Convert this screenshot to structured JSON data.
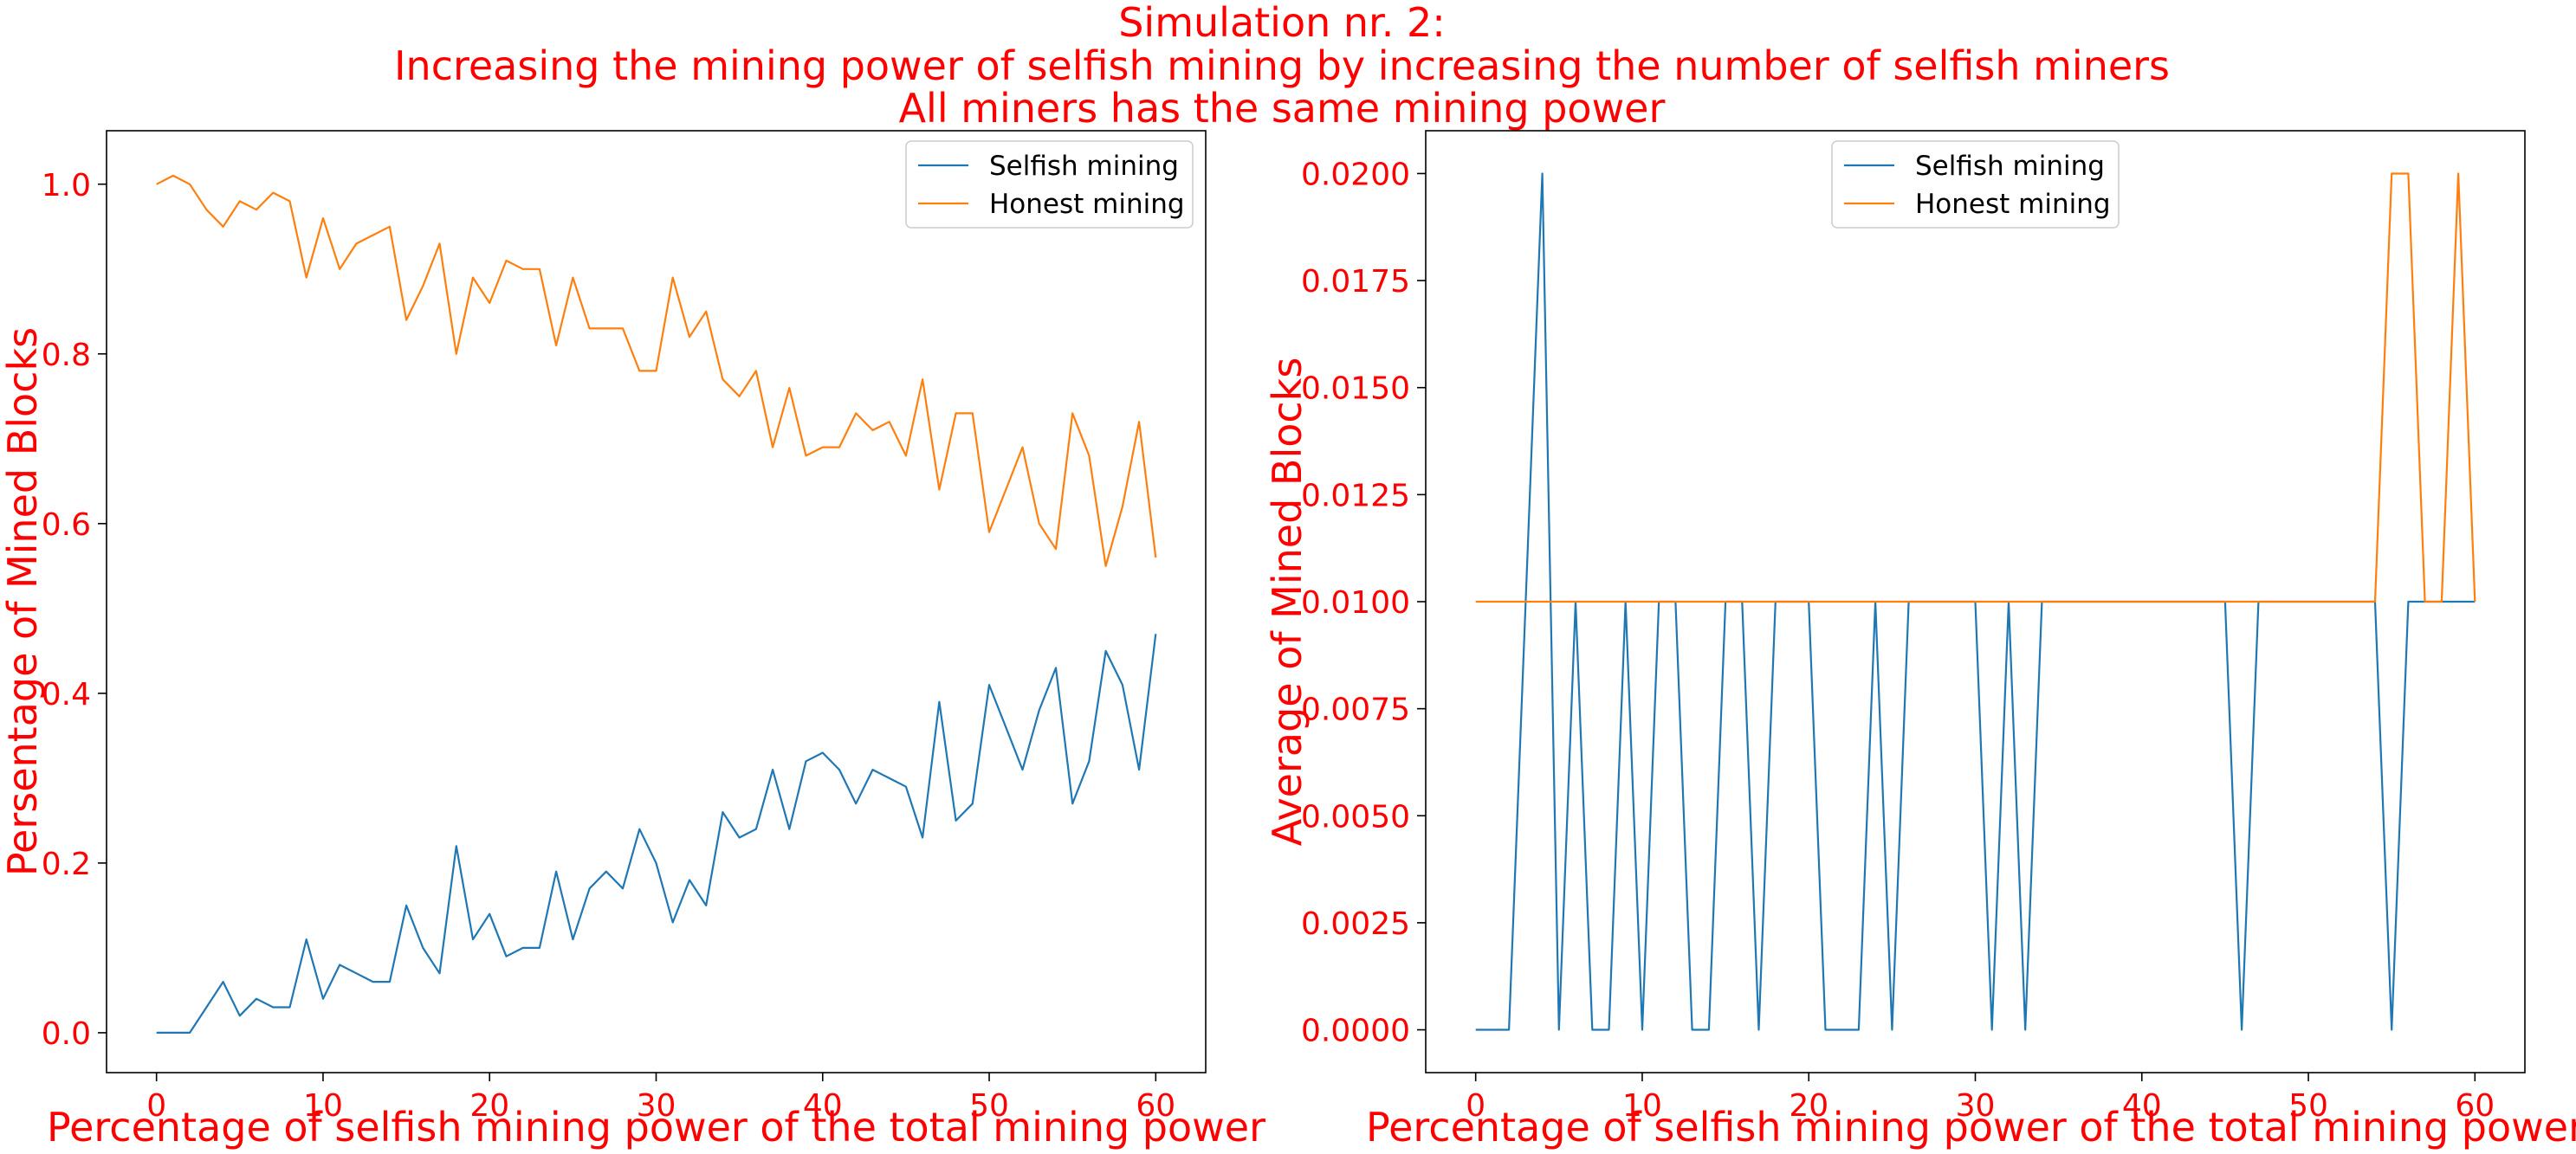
{
  "figure": {
    "title_lines": [
      "Simulation nr. 2:",
      "Increasing the mining power of selfish mining by increasing the number of selfish miners",
      "All miners has the same mining power"
    ]
  },
  "colors": {
    "selfish": "#1f77b4",
    "honest": "#ff7f0e",
    "text": "#ff0000"
  },
  "chart_data": [
    {
      "type": "line",
      "title": "",
      "xlabel": "Percentage of selfish mining power of the total mining power",
      "ylabel": "Persentage of Mined Blocks",
      "xlim": [
        -3,
        63
      ],
      "ylim": [
        -0.047,
        1.063
      ],
      "xticks": [
        0,
        10,
        20,
        30,
        40,
        50,
        60
      ],
      "xtick_labels": [
        "0",
        "10",
        "20",
        "30",
        "40",
        "50",
        "60"
      ],
      "yticks": [
        0.0,
        0.2,
        0.4,
        0.6,
        0.8,
        1.0
      ],
      "ytick_labels": [
        "0.0",
        "0.2",
        "0.4",
        "0.6",
        "0.8",
        "1.0"
      ],
      "grid": false,
      "legend": "upper right",
      "x": [
        0,
        1,
        2,
        3,
        4,
        5,
        6,
        7,
        8,
        9,
        10,
        11,
        12,
        13,
        14,
        15,
        16,
        17,
        18,
        19,
        20,
        21,
        22,
        23,
        24,
        25,
        26,
        27,
        28,
        29,
        30,
        31,
        32,
        33,
        34,
        35,
        36,
        37,
        38,
        39,
        40,
        41,
        42,
        43,
        44,
        45,
        46,
        47,
        48,
        49,
        50,
        51,
        52,
        53,
        54,
        55,
        56,
        57,
        58,
        59,
        60
      ],
      "series": [
        {
          "name": "Selfish mining",
          "color": "#1f77b4",
          "values": [
            0.0,
            0.0,
            0.0,
            0.03,
            0.06,
            0.02,
            0.04,
            0.03,
            0.03,
            0.11,
            0.04,
            0.08,
            0.07,
            0.06,
            0.06,
            0.15,
            0.1,
            0.07,
            0.22,
            0.11,
            0.14,
            0.09,
            0.1,
            0.1,
            0.19,
            0.11,
            0.17,
            0.19,
            0.17,
            0.24,
            0.2,
            0.13,
            0.18,
            0.15,
            0.26,
            0.23,
            0.24,
            0.31,
            0.24,
            0.32,
            0.33,
            0.31,
            0.27,
            0.31,
            0.3,
            0.29,
            0.23,
            0.39,
            0.25,
            0.27,
            0.41,
            0.36,
            0.31,
            0.38,
            0.43,
            0.27,
            0.32,
            0.45,
            0.41,
            0.31,
            0.47
          ]
        },
        {
          "name": "Honest mining",
          "color": "#ff7f0e",
          "values": [
            1.0,
            1.01,
            1.0,
            0.97,
            0.95,
            0.98,
            0.97,
            0.99,
            0.98,
            0.89,
            0.96,
            0.9,
            0.93,
            0.94,
            0.95,
            0.84,
            0.88,
            0.93,
            0.8,
            0.89,
            0.86,
            0.91,
            0.9,
            0.9,
            0.81,
            0.89,
            0.83,
            0.83,
            0.83,
            0.78,
            0.78,
            0.89,
            0.82,
            0.85,
            0.77,
            0.75,
            0.78,
            0.69,
            0.76,
            0.68,
            0.69,
            0.69,
            0.73,
            0.71,
            0.72,
            0.68,
            0.77,
            0.64,
            0.73,
            0.73,
            0.59,
            0.64,
            0.69,
            0.6,
            0.57,
            0.73,
            0.68,
            0.55,
            0.62,
            0.72,
            0.56
          ]
        }
      ]
    },
    {
      "type": "line",
      "title": "",
      "xlabel": "Percentage of selfish mining power of the total mining power",
      "ylabel": "Average of Mined Blocks",
      "xlim": [
        -3,
        63
      ],
      "ylim": [
        -0.001,
        0.021
      ],
      "xticks": [
        0,
        10,
        20,
        30,
        40,
        50,
        60
      ],
      "xtick_labels": [
        "0",
        "10",
        "20",
        "30",
        "40",
        "50",
        "60"
      ],
      "yticks": [
        0.0,
        0.0025,
        0.005,
        0.0075,
        0.01,
        0.0125,
        0.015,
        0.0175,
        0.02
      ],
      "ytick_labels": [
        "0.0000",
        "0.0025",
        "0.0050",
        "0.0075",
        "0.0100",
        "0.0125",
        "0.0150",
        "0.0175",
        "0.0200"
      ],
      "grid": false,
      "legend": "upper center",
      "x": [
        0,
        1,
        2,
        3,
        4,
        5,
        6,
        7,
        8,
        9,
        10,
        11,
        12,
        13,
        14,
        15,
        16,
        17,
        18,
        19,
        20,
        21,
        22,
        23,
        24,
        25,
        26,
        27,
        28,
        29,
        30,
        31,
        32,
        33,
        34,
        35,
        36,
        37,
        38,
        39,
        40,
        41,
        42,
        43,
        44,
        45,
        46,
        47,
        48,
        49,
        50,
        51,
        52,
        53,
        54,
        55,
        56,
        57,
        58,
        59,
        60
      ],
      "series": [
        {
          "name": "Selfish mining",
          "color": "#1f77b4",
          "values": [
            0.0,
            0.0,
            0.0,
            0.01,
            0.02,
            0.0,
            0.01,
            0.0,
            0.0,
            0.01,
            0.0,
            0.01,
            0.01,
            0.0,
            0.0,
            0.01,
            0.01,
            0.0,
            0.01,
            0.01,
            0.01,
            0.0,
            0.0,
            0.0,
            0.01,
            0.0,
            0.01,
            0.01,
            0.01,
            0.01,
            0.01,
            0.0,
            0.01,
            0.0,
            0.01,
            0.01,
            0.01,
            0.01,
            0.01,
            0.01,
            0.01,
            0.01,
            0.01,
            0.01,
            0.01,
            0.01,
            0.0,
            0.01,
            0.01,
            0.01,
            0.01,
            0.01,
            0.01,
            0.01,
            0.01,
            0.0,
            0.01,
            0.01,
            0.01,
            0.01,
            0.01
          ]
        },
        {
          "name": "Honest mining",
          "color": "#ff7f0e",
          "values": [
            0.01,
            0.01,
            0.01,
            0.01,
            0.01,
            0.01,
            0.01,
            0.01,
            0.01,
            0.01,
            0.01,
            0.01,
            0.01,
            0.01,
            0.01,
            0.01,
            0.01,
            0.01,
            0.01,
            0.01,
            0.01,
            0.01,
            0.01,
            0.01,
            0.01,
            0.01,
            0.01,
            0.01,
            0.01,
            0.01,
            0.01,
            0.01,
            0.01,
            0.01,
            0.01,
            0.01,
            0.01,
            0.01,
            0.01,
            0.01,
            0.01,
            0.01,
            0.01,
            0.01,
            0.01,
            0.01,
            0.01,
            0.01,
            0.01,
            0.01,
            0.01,
            0.01,
            0.01,
            0.01,
            0.01,
            0.02,
            0.02,
            0.01,
            0.01,
            0.02,
            0.01
          ]
        }
      ]
    }
  ]
}
